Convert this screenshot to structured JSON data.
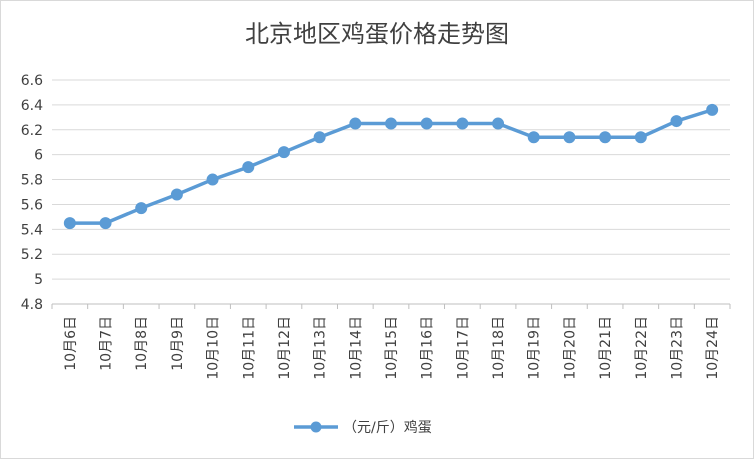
{
  "chart_data": {
    "type": "line",
    "title": "北京地区鸡蛋价格走势图",
    "categories": [
      "10月6日",
      "10月7日",
      "10月8日",
      "10月9日",
      "10月10日",
      "10月11日",
      "10月12日",
      "10月13日",
      "10月14日",
      "10月15日",
      "10月16日",
      "10月17日",
      "10月18日",
      "10月19日",
      "10月20日",
      "10月21日",
      "10月22日",
      "10月23日",
      "10月24日"
    ],
    "series": [
      {
        "name": "（元/斤）鸡蛋",
        "values": [
          5.45,
          5.45,
          5.57,
          5.68,
          5.8,
          5.9,
          6.02,
          6.14,
          6.25,
          6.25,
          6.25,
          6.25,
          6.25,
          6.14,
          6.14,
          6.14,
          6.14,
          6.27,
          6.36
        ]
      }
    ],
    "ylim": [
      4.8,
      6.6
    ],
    "yticks": [
      "4.8",
      "5",
      "5.2",
      "5.4",
      "5.6",
      "5.8",
      "6",
      "6.2",
      "6.4",
      "6.6"
    ],
    "grid": true,
    "legend": "bottom",
    "colors": {
      "series": "#5b9bd5"
    }
  }
}
